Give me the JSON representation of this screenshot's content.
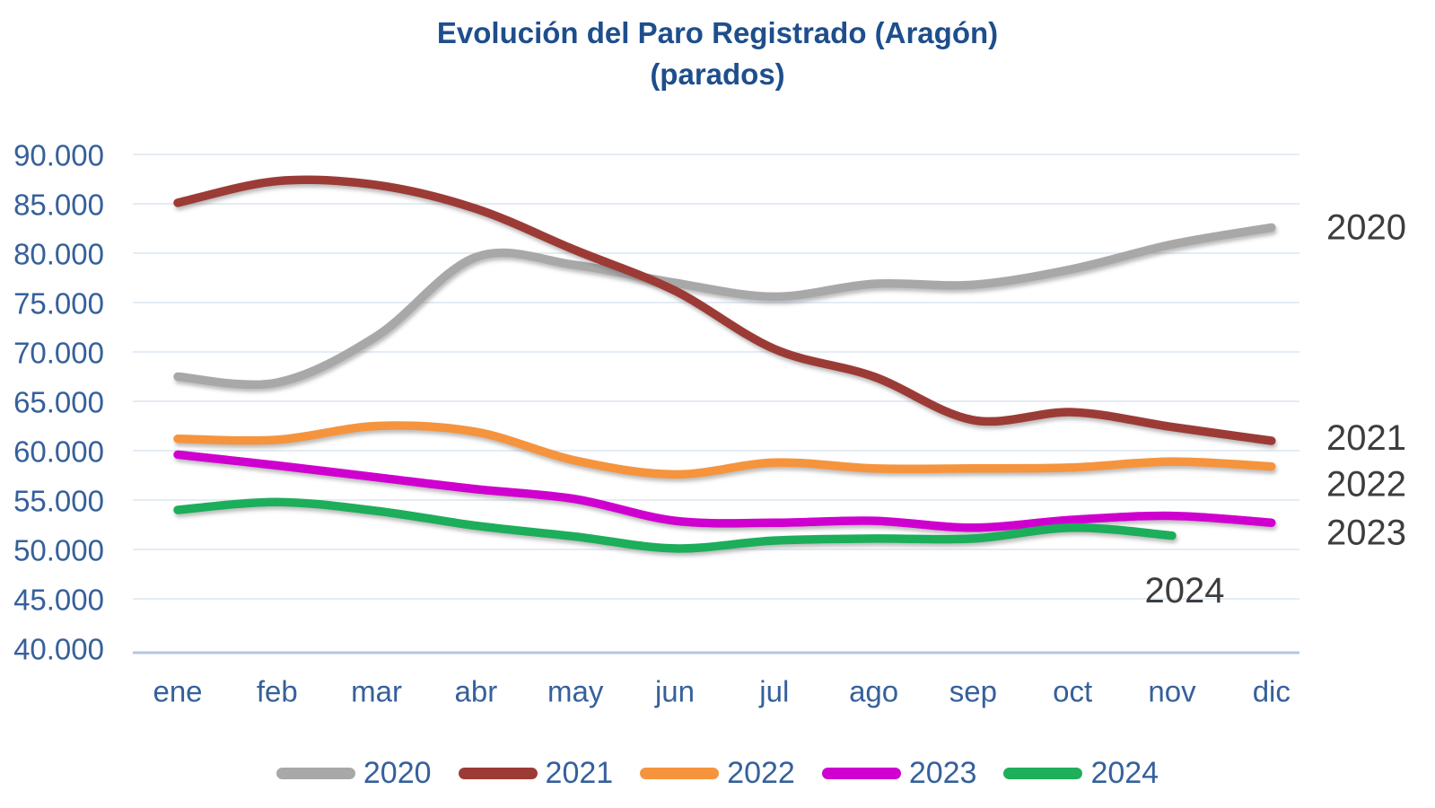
{
  "title": {
    "line1": "Evolución del Paro Registrado (Aragón)",
    "line2": "(parados)"
  },
  "colors": {
    "title": "#1e4e8c",
    "axis_labels": "#36609b",
    "legend_labels": "#36609b",
    "year_end_labels": "#3d3d3d",
    "grid": "#dce6f1",
    "axis_line": "#b4c7e2"
  },
  "chart_data": {
    "type": "line",
    "smooth": true,
    "grid": true,
    "legend_position": "bottom",
    "categories": [
      "ene",
      "feb",
      "mar",
      "abr",
      "may",
      "jun",
      "jul",
      "ago",
      "sep",
      "oct",
      "nov",
      "dic"
    ],
    "y_ticks": [
      "90.000",
      "85.000",
      "80.000",
      "75.000",
      "70.000",
      "65.000",
      "60.000",
      "55.000",
      "50.000",
      "45.000",
      "40.000"
    ],
    "ylim": [
      40000,
      90000
    ],
    "y_step": 5000,
    "title": "Evolución del Paro Registrado (Aragón) (parados)",
    "xlabel": "",
    "ylabel": "",
    "series": [
      {
        "name": "2020",
        "color": "#a8a8a8",
        "values": [
          67500,
          66900,
          71600,
          79600,
          78800,
          77000,
          75600,
          76900,
          76800,
          78400,
          80900,
          82600
        ]
      },
      {
        "name": "2021",
        "color": "#9c3a36",
        "values": [
          85100,
          87300,
          86900,
          84500,
          80300,
          76200,
          70300,
          67500,
          63100,
          63900,
          62400,
          61000
        ]
      },
      {
        "name": "2022",
        "color": "#f5943d",
        "values": [
          61200,
          61100,
          62500,
          61900,
          59000,
          57600,
          58800,
          58200,
          58200,
          58300,
          58900,
          58400
        ]
      },
      {
        "name": "2023",
        "color": "#cf00cf",
        "values": [
          59600,
          58500,
          57300,
          56100,
          55100,
          52900,
          52700,
          52900,
          52200,
          53000,
          53400,
          52700
        ]
      },
      {
        "name": "2024",
        "color": "#1fae5a",
        "values": [
          54000,
          54800,
          53900,
          52400,
          51300,
          50100,
          50900,
          51100,
          51100,
          52200,
          51400
        ]
      }
    ],
    "end_labels": [
      "2020",
      "2021",
      "2022",
      "2023",
      "2024"
    ]
  }
}
